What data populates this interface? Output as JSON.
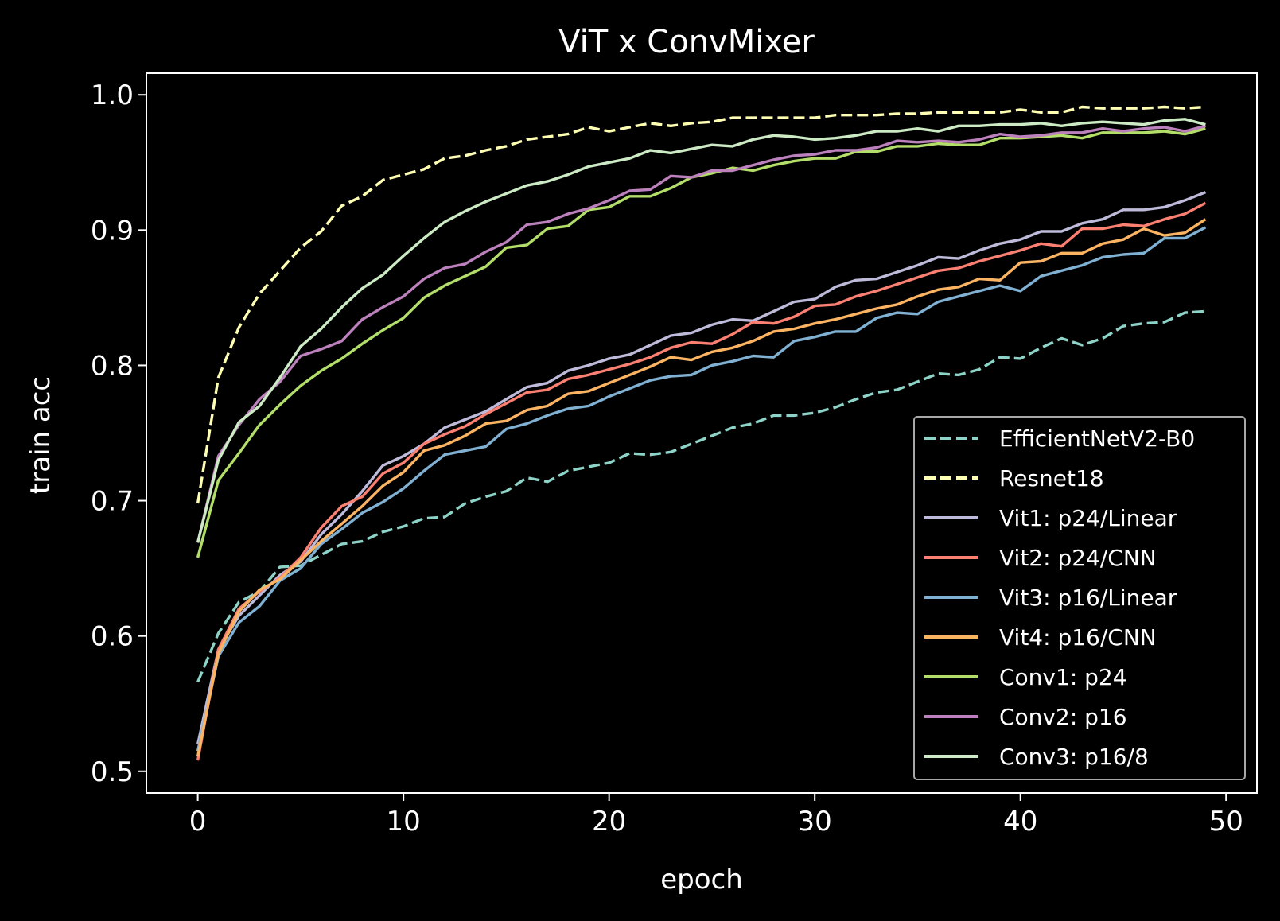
{
  "chart_data": {
    "type": "line",
    "title": "ViT x ConvMixer",
    "xlabel": "epoch",
    "ylabel": "train acc",
    "xlim": [
      -2.5,
      51.5
    ],
    "ylim": [
      0.484,
      1.016
    ],
    "xticks": [
      0,
      10,
      20,
      30,
      40,
      50
    ],
    "yticks": [
      0.5,
      0.6,
      0.7,
      0.8,
      0.9,
      1.0
    ],
    "xtick_labels": [
      "0",
      "10",
      "20",
      "30",
      "40",
      "50"
    ],
    "ytick_labels": [
      "0.5",
      "0.6",
      "0.7",
      "0.8",
      "0.9",
      "1.0"
    ],
    "grid": false,
    "legend_position": "lower-right",
    "background": "#000000",
    "x": [
      0,
      1,
      2,
      3,
      4,
      5,
      6,
      7,
      8,
      9,
      10,
      11,
      12,
      13,
      14,
      15,
      16,
      17,
      18,
      19,
      20,
      21,
      22,
      23,
      24,
      25,
      26,
      27,
      28,
      29,
      30,
      31,
      32,
      33,
      34,
      35,
      36,
      37,
      38,
      39,
      40,
      41,
      42,
      43,
      44,
      45,
      46,
      47,
      48,
      49
    ],
    "series": [
      {
        "name": "EfficientNetV2-B0",
        "color": "#8dd3c7",
        "dash": true,
        "values": [
          0.566,
          0.602,
          0.625,
          0.633,
          0.651,
          0.652,
          0.66,
          0.668,
          0.67,
          0.677,
          0.681,
          0.687,
          0.688,
          0.698,
          0.703,
          0.707,
          0.717,
          0.714,
          0.722,
          0.725,
          0.728,
          0.735,
          0.734,
          0.736,
          0.742,
          0.748,
          0.754,
          0.757,
          0.763,
          0.763,
          0.765,
          0.769,
          0.775,
          0.78,
          0.782,
          0.788,
          0.794,
          0.793,
          0.797,
          0.806,
          0.805,
          0.813,
          0.82,
          0.815,
          0.82,
          0.829,
          0.831,
          0.832,
          0.839,
          0.84
        ]
      },
      {
        "name": "Resnet18",
        "color": "#ffffb3",
        "dash": true,
        "values": [
          0.698,
          0.791,
          0.828,
          0.853,
          0.87,
          0.887,
          0.899,
          0.918,
          0.925,
          0.937,
          0.941,
          0.945,
          0.953,
          0.955,
          0.959,
          0.962,
          0.967,
          0.969,
          0.971,
          0.976,
          0.973,
          0.976,
          0.979,
          0.977,
          0.979,
          0.98,
          0.983,
          0.983,
          0.983,
          0.983,
          0.983,
          0.985,
          0.985,
          0.985,
          0.986,
          0.986,
          0.987,
          0.987,
          0.987,
          0.987,
          0.989,
          0.987,
          0.987,
          0.991,
          0.99,
          0.99,
          0.99,
          0.991,
          0.99,
          0.991
        ]
      },
      {
        "name": "Vit1: p24/Linear",
        "color": "#bebada",
        "dash": false,
        "values": [
          0.52,
          0.59,
          0.615,
          0.63,
          0.645,
          0.655,
          0.675,
          0.69,
          0.707,
          0.726,
          0.733,
          0.742,
          0.754,
          0.76,
          0.766,
          0.775,
          0.784,
          0.787,
          0.796,
          0.8,
          0.805,
          0.808,
          0.815,
          0.822,
          0.824,
          0.83,
          0.834,
          0.833,
          0.84,
          0.847,
          0.849,
          0.858,
          0.863,
          0.864,
          0.869,
          0.874,
          0.88,
          0.879,
          0.885,
          0.89,
          0.893,
          0.899,
          0.899,
          0.905,
          0.908,
          0.915,
          0.915,
          0.917,
          0.922,
          0.928
        ]
      },
      {
        "name": "Vit2: p24/CNN",
        "color": "#fb8072",
        "dash": false,
        "values": [
          0.508,
          0.59,
          0.62,
          0.633,
          0.643,
          0.658,
          0.68,
          0.696,
          0.703,
          0.72,
          0.728,
          0.742,
          0.749,
          0.755,
          0.764,
          0.772,
          0.78,
          0.782,
          0.79,
          0.793,
          0.797,
          0.801,
          0.806,
          0.813,
          0.817,
          0.816,
          0.823,
          0.832,
          0.831,
          0.836,
          0.844,
          0.845,
          0.851,
          0.855,
          0.86,
          0.865,
          0.87,
          0.872,
          0.877,
          0.881,
          0.885,
          0.89,
          0.888,
          0.901,
          0.901,
          0.904,
          0.903,
          0.908,
          0.912,
          0.92
        ]
      },
      {
        "name": "Vit3: p16/Linear",
        "color": "#80b1d3",
        "dash": false,
        "values": [
          0.515,
          0.585,
          0.61,
          0.622,
          0.641,
          0.65,
          0.668,
          0.679,
          0.691,
          0.699,
          0.709,
          0.722,
          0.734,
          0.737,
          0.74,
          0.753,
          0.757,
          0.763,
          0.768,
          0.77,
          0.777,
          0.783,
          0.789,
          0.792,
          0.793,
          0.8,
          0.803,
          0.807,
          0.806,
          0.818,
          0.821,
          0.825,
          0.825,
          0.835,
          0.839,
          0.838,
          0.847,
          0.851,
          0.855,
          0.859,
          0.855,
          0.866,
          0.87,
          0.874,
          0.88,
          0.882,
          0.883,
          0.894,
          0.894,
          0.902
        ]
      },
      {
        "name": "Vit4: p16/CNN",
        "color": "#fdb462",
        "dash": false,
        "values": [
          0.511,
          0.587,
          0.618,
          0.634,
          0.642,
          0.656,
          0.67,
          0.683,
          0.696,
          0.711,
          0.721,
          0.737,
          0.741,
          0.748,
          0.757,
          0.759,
          0.767,
          0.77,
          0.779,
          0.781,
          0.787,
          0.793,
          0.799,
          0.806,
          0.804,
          0.81,
          0.813,
          0.818,
          0.825,
          0.827,
          0.831,
          0.834,
          0.838,
          0.842,
          0.845,
          0.851,
          0.856,
          0.858,
          0.864,
          0.863,
          0.876,
          0.877,
          0.883,
          0.883,
          0.89,
          0.893,
          0.901,
          0.896,
          0.898,
          0.908
        ]
      },
      {
        "name": "Conv1: p24",
        "color": "#b3de69",
        "dash": false,
        "values": [
          0.658,
          0.715,
          0.735,
          0.756,
          0.771,
          0.785,
          0.796,
          0.805,
          0.816,
          0.826,
          0.835,
          0.85,
          0.859,
          0.866,
          0.873,
          0.887,
          0.889,
          0.901,
          0.903,
          0.915,
          0.917,
          0.925,
          0.925,
          0.931,
          0.939,
          0.942,
          0.946,
          0.944,
          0.948,
          0.951,
          0.953,
          0.953,
          0.958,
          0.958,
          0.962,
          0.962,
          0.964,
          0.963,
          0.963,
          0.968,
          0.968,
          0.969,
          0.97,
          0.968,
          0.972,
          0.972,
          0.972,
          0.973,
          0.971,
          0.975
        ]
      },
      {
        "name": "Conv2: p16",
        "color": "#bc80bd",
        "dash": false,
        "values": [
          0.669,
          0.733,
          0.756,
          0.775,
          0.788,
          0.807,
          0.812,
          0.818,
          0.834,
          0.843,
          0.851,
          0.864,
          0.872,
          0.875,
          0.884,
          0.891,
          0.904,
          0.906,
          0.912,
          0.916,
          0.922,
          0.929,
          0.93,
          0.94,
          0.939,
          0.944,
          0.944,
          0.948,
          0.952,
          0.955,
          0.956,
          0.959,
          0.959,
          0.961,
          0.966,
          0.965,
          0.966,
          0.965,
          0.967,
          0.971,
          0.969,
          0.97,
          0.972,
          0.972,
          0.975,
          0.973,
          0.975,
          0.976,
          0.973,
          0.977
        ]
      },
      {
        "name": "Conv3: p16/8",
        "color": "#ccebc5",
        "dash": false,
        "values": [
          0.669,
          0.73,
          0.758,
          0.77,
          0.791,
          0.814,
          0.827,
          0.843,
          0.857,
          0.867,
          0.881,
          0.894,
          0.906,
          0.914,
          0.921,
          0.927,
          0.933,
          0.936,
          0.941,
          0.947,
          0.95,
          0.953,
          0.959,
          0.957,
          0.96,
          0.963,
          0.962,
          0.967,
          0.97,
          0.969,
          0.967,
          0.968,
          0.97,
          0.973,
          0.973,
          0.975,
          0.973,
          0.977,
          0.977,
          0.978,
          0.978,
          0.979,
          0.977,
          0.979,
          0.98,
          0.979,
          0.978,
          0.981,
          0.982,
          0.978
        ]
      }
    ]
  }
}
